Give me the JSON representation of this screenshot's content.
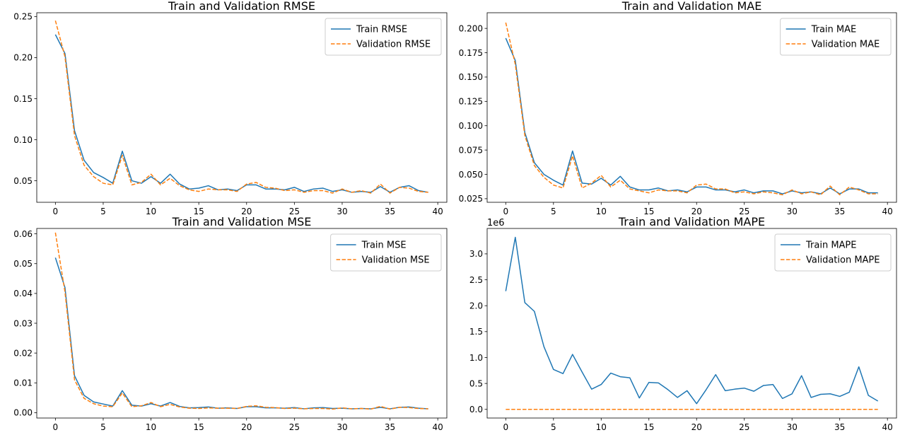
{
  "chart_data": [
    {
      "type": "line",
      "title": "Train and Validation RMSE",
      "xlabel": "",
      "ylabel": "",
      "x": [
        0,
        1,
        2,
        3,
        4,
        5,
        6,
        7,
        8,
        9,
        10,
        11,
        12,
        13,
        14,
        15,
        16,
        17,
        18,
        19,
        20,
        21,
        22,
        23,
        24,
        25,
        26,
        27,
        28,
        29,
        30,
        31,
        32,
        33,
        34,
        35,
        36,
        37,
        38,
        39
      ],
      "xlim": [
        -1.95,
        40.95
      ],
      "ylim": [
        0.0238,
        0.2546
      ],
      "xticks": [
        "0",
        "5",
        "10",
        "15",
        "20",
        "25",
        "30",
        "35",
        "40"
      ],
      "yticks": [
        "0.05",
        "0.10",
        "0.15",
        "0.20",
        "0.25"
      ],
      "legend_position": "upper-right",
      "series": [
        {
          "name": "Train RMSE",
          "style": "solid",
          "color": "#1f77b4",
          "values": [
            0.228,
            0.205,
            0.111,
            0.075,
            0.06,
            0.054,
            0.047,
            0.086,
            0.05,
            0.047,
            0.055,
            0.047,
            0.058,
            0.046,
            0.04,
            0.041,
            0.044,
            0.039,
            0.04,
            0.038,
            0.045,
            0.045,
            0.04,
            0.04,
            0.039,
            0.042,
            0.037,
            0.04,
            0.041,
            0.037,
            0.039,
            0.036,
            0.037,
            0.036,
            0.043,
            0.036,
            0.042,
            0.044,
            0.038,
            0.036
          ]
        },
        {
          "name": "Validation RMSE",
          "style": "dashed",
          "color": "#ff7f0e",
          "values": [
            0.245,
            0.201,
            0.105,
            0.069,
            0.055,
            0.047,
            0.045,
            0.081,
            0.045,
            0.048,
            0.058,
            0.045,
            0.053,
            0.044,
            0.039,
            0.037,
            0.04,
            0.039,
            0.039,
            0.037,
            0.046,
            0.048,
            0.042,
            0.041,
            0.038,
            0.039,
            0.036,
            0.038,
            0.038,
            0.035,
            0.04,
            0.036,
            0.038,
            0.035,
            0.046,
            0.035,
            0.042,
            0.041,
            0.037,
            0.036
          ]
        }
      ]
    },
    {
      "type": "line",
      "title": "Train and Validation MAE",
      "xlabel": "",
      "ylabel": "",
      "x": [
        0,
        1,
        2,
        3,
        4,
        5,
        6,
        7,
        8,
        9,
        10,
        11,
        12,
        13,
        14,
        15,
        16,
        17,
        18,
        19,
        20,
        21,
        22,
        23,
        24,
        25,
        26,
        27,
        28,
        29,
        30,
        31,
        32,
        33,
        34,
        35,
        36,
        37,
        38,
        39
      ],
      "xlim": [
        -1.95,
        40.95
      ],
      "ylim": [
        0.0213,
        0.2161
      ],
      "xticks": [
        "0",
        "5",
        "10",
        "15",
        "20",
        "25",
        "30",
        "35",
        "40"
      ],
      "yticks": [
        "0.025",
        "0.050",
        "0.075",
        "0.100",
        "0.125",
        "0.150",
        "0.175",
        "0.200"
      ],
      "legend_position": "upper-right",
      "series": [
        {
          "name": "Train MAE",
          "style": "solid",
          "color": "#1f77b4",
          "values": [
            0.19,
            0.167,
            0.093,
            0.062,
            0.05,
            0.044,
            0.039,
            0.074,
            0.041,
            0.04,
            0.046,
            0.039,
            0.048,
            0.037,
            0.034,
            0.034,
            0.036,
            0.033,
            0.034,
            0.032,
            0.037,
            0.037,
            0.034,
            0.034,
            0.032,
            0.034,
            0.031,
            0.033,
            0.033,
            0.03,
            0.033,
            0.031,
            0.032,
            0.03,
            0.036,
            0.03,
            0.035,
            0.035,
            0.031,
            0.031
          ]
        },
        {
          "name": "Validation MAE",
          "style": "dashed",
          "color": "#ff7f0e",
          "values": [
            0.206,
            0.163,
            0.09,
            0.059,
            0.047,
            0.039,
            0.036,
            0.069,
            0.036,
            0.041,
            0.049,
            0.037,
            0.044,
            0.035,
            0.033,
            0.031,
            0.034,
            0.033,
            0.033,
            0.031,
            0.039,
            0.04,
            0.035,
            0.035,
            0.031,
            0.032,
            0.03,
            0.032,
            0.031,
            0.029,
            0.034,
            0.03,
            0.032,
            0.029,
            0.038,
            0.029,
            0.037,
            0.034,
            0.03,
            0.03
          ]
        }
      ]
    },
    {
      "type": "line",
      "title": "Train and Validation MSE",
      "xlabel": "",
      "ylabel": "",
      "x": [
        0,
        1,
        2,
        3,
        4,
        5,
        6,
        7,
        8,
        9,
        10,
        11,
        12,
        13,
        14,
        15,
        16,
        17,
        18,
        19,
        20,
        21,
        22,
        23,
        24,
        25,
        26,
        27,
        28,
        29,
        30,
        31,
        32,
        33,
        34,
        35,
        36,
        37,
        38,
        39
      ],
      "xlim": [
        -1.95,
        40.95
      ],
      "ylim": [
        -0.0018,
        0.0618
      ],
      "xticks": [
        "0",
        "5",
        "10",
        "15",
        "20",
        "25",
        "30",
        "35",
        "40"
      ],
      "yticks": [
        "0.00",
        "0.01",
        "0.02",
        "0.03",
        "0.04",
        "0.05",
        "0.06"
      ],
      "legend_position": "upper-right",
      "series": [
        {
          "name": "Train MSE",
          "style": "solid",
          "color": "#1f77b4",
          "values": [
            0.052,
            0.042,
            0.0124,
            0.0058,
            0.0036,
            0.0029,
            0.0022,
            0.0074,
            0.0025,
            0.0022,
            0.003,
            0.0022,
            0.0034,
            0.0021,
            0.0016,
            0.0017,
            0.0019,
            0.0015,
            0.0016,
            0.0014,
            0.002,
            0.002,
            0.0016,
            0.0016,
            0.0015,
            0.0017,
            0.0013,
            0.0016,
            0.0017,
            0.0014,
            0.0015,
            0.0013,
            0.0014,
            0.0013,
            0.0018,
            0.0013,
            0.0018,
            0.0019,
            0.0015,
            0.0013
          ]
        },
        {
          "name": "Validation MSE",
          "style": "dashed",
          "color": "#ff7f0e",
          "values": [
            0.0604,
            0.0405,
            0.011,
            0.0048,
            0.003,
            0.0022,
            0.002,
            0.0066,
            0.002,
            0.0023,
            0.0034,
            0.002,
            0.0028,
            0.0019,
            0.0015,
            0.0014,
            0.0016,
            0.0015,
            0.0015,
            0.0014,
            0.0021,
            0.0023,
            0.0018,
            0.0017,
            0.0014,
            0.0015,
            0.0013,
            0.0014,
            0.0014,
            0.0012,
            0.0016,
            0.0013,
            0.0014,
            0.0012,
            0.0021,
            0.0012,
            0.0018,
            0.0017,
            0.0014,
            0.0013
          ]
        }
      ]
    },
    {
      "type": "line",
      "title": "Train and Validation MAPE",
      "xlabel": "",
      "ylabel": "",
      "x": [
        0,
        1,
        2,
        3,
        4,
        5,
        6,
        7,
        8,
        9,
        10,
        11,
        12,
        13,
        14,
        15,
        16,
        17,
        18,
        19,
        20,
        21,
        22,
        23,
        24,
        25,
        26,
        27,
        28,
        29,
        30,
        31,
        32,
        33,
        34,
        35,
        36,
        37,
        38,
        39
      ],
      "xlim": [
        -1.95,
        40.95
      ],
      "ylim": [
        -0.167,
        3.49
      ],
      "y_offset_label": "1e6",
      "xticks": [
        "0",
        "5",
        "10",
        "15",
        "20",
        "25",
        "30",
        "35",
        "40"
      ],
      "yticks": [
        "0.0",
        "0.5",
        "1.0",
        "1.5",
        "2.0",
        "2.5",
        "3.0"
      ],
      "legend_position": "upper-right",
      "series": [
        {
          "name": "Train MAPE",
          "style": "solid",
          "color": "#1f77b4",
          "values": [
            2.28,
            3.32,
            2.06,
            1.89,
            1.21,
            0.77,
            0.69,
            1.06,
            0.72,
            0.39,
            0.48,
            0.7,
            0.63,
            0.61,
            0.22,
            0.52,
            0.51,
            0.38,
            0.23,
            0.36,
            0.11,
            0.38,
            0.67,
            0.36,
            0.39,
            0.41,
            0.35,
            0.46,
            0.48,
            0.21,
            0.3,
            0.65,
            0.23,
            0.29,
            0.3,
            0.25,
            0.33,
            0.82,
            0.27,
            0.16
          ]
        },
        {
          "name": "Validation MAPE",
          "style": "dashed",
          "color": "#ff7f0e",
          "values": [
            0,
            0,
            0,
            0,
            0,
            0,
            0,
            0,
            0,
            0,
            0,
            0,
            0,
            0,
            0,
            0,
            0,
            0,
            0,
            0,
            0,
            0,
            0,
            0,
            0,
            0,
            0,
            0,
            0,
            0,
            0,
            0,
            0,
            0,
            0,
            0,
            0,
            0,
            0,
            0
          ]
        }
      ]
    }
  ]
}
